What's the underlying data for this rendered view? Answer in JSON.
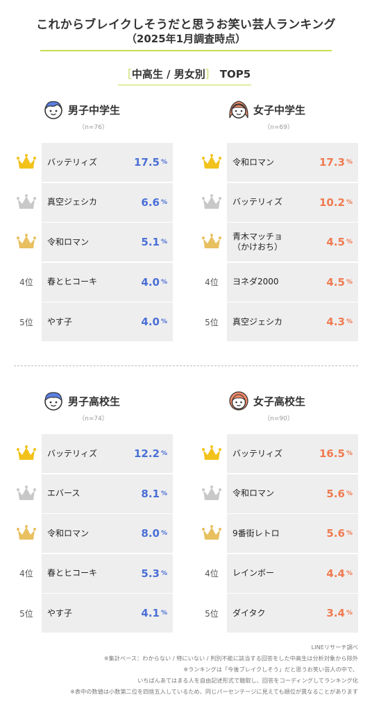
{
  "title_line1": "これからブレイクしそうだと思うお笑い芸人ランキング",
  "title_line2": "（2025年1月調査時点）",
  "subtitle": {
    "open": "［",
    "text": "中高生 / 男女別",
    "close": "］",
    "top": "TOP5"
  },
  "colors": {
    "accent": "#c5de4e",
    "male": "#4a6fd6",
    "female": "#f07a50",
    "gold": "#f2c21a",
    "silver": "#c8c8c8",
    "bronze": "#e8c060"
  },
  "chart_data": [
    {
      "type": "table",
      "title": "男子中学生",
      "n": "（n=76）",
      "color": "male",
      "rows": [
        {
          "rank": 1,
          "rank_label": "1",
          "name": "バッテリィズ",
          "value": 17.5,
          "display": "17.5"
        },
        {
          "rank": 2,
          "rank_label": "2",
          "name": "真空ジェシカ",
          "value": 6.6,
          "display": "6.6"
        },
        {
          "rank": 3,
          "rank_label": "3",
          "name": "令和ロマン",
          "value": 5.1,
          "display": "5.1"
        },
        {
          "rank": 4,
          "rank_label": "4位",
          "name": "春とヒコーキ",
          "value": 4.0,
          "display": "4.0"
        },
        {
          "rank": 5,
          "rank_label": "5位",
          "name": "やす子",
          "value": 4.0,
          "display": "4.0"
        }
      ]
    },
    {
      "type": "table",
      "title": "女子中学生",
      "n": "（n=69）",
      "color": "female",
      "rows": [
        {
          "rank": 1,
          "rank_label": "1",
          "name": "令和ロマン",
          "value": 17.3,
          "display": "17.3"
        },
        {
          "rank": 2,
          "rank_label": "2",
          "name": "バッテリィズ",
          "value": 10.2,
          "display": "10.2"
        },
        {
          "rank": 3,
          "rank_label": "3",
          "name": "青木マッチョ\n（かけおち）",
          "value": 4.5,
          "display": "4.5"
        },
        {
          "rank": 4,
          "rank_label": "4位",
          "name": "ヨネダ2000",
          "value": 4.5,
          "display": "4.5"
        },
        {
          "rank": 5,
          "rank_label": "5位",
          "name": "真空ジェシカ",
          "value": 4.3,
          "display": "4.3"
        }
      ]
    },
    {
      "type": "table",
      "title": "男子高校生",
      "n": "（n=74）",
      "color": "male",
      "rows": [
        {
          "rank": 1,
          "rank_label": "1",
          "name": "バッテリィズ",
          "value": 12.2,
          "display": "12.2"
        },
        {
          "rank": 2,
          "rank_label": "2",
          "name": "エバース",
          "value": 8.1,
          "display": "8.1"
        },
        {
          "rank": 3,
          "rank_label": "3",
          "name": "令和ロマン",
          "value": 8.0,
          "display": "8.0"
        },
        {
          "rank": 4,
          "rank_label": "4位",
          "name": "春とヒコーキ",
          "value": 5.3,
          "display": "5.3"
        },
        {
          "rank": 5,
          "rank_label": "5位",
          "name": "やす子",
          "value": 4.1,
          "display": "4.1"
        }
      ]
    },
    {
      "type": "table",
      "title": "女子高校生",
      "n": "（n=90）",
      "color": "female",
      "rows": [
        {
          "rank": 1,
          "rank_label": "1",
          "name": "バッテリィズ",
          "value": 16.5,
          "display": "16.5"
        },
        {
          "rank": 2,
          "rank_label": "2",
          "name": "令和ロマン",
          "value": 5.6,
          "display": "5.6"
        },
        {
          "rank": 3,
          "rank_label": "3",
          "name": "9番街レトロ",
          "value": 5.6,
          "display": "5.6"
        },
        {
          "rank": 4,
          "rank_label": "4位",
          "name": "レインボー",
          "value": 4.4,
          "display": "4.4"
        },
        {
          "rank": 5,
          "rank_label": "5位",
          "name": "ダイタク",
          "value": 3.4,
          "display": "3.4"
        }
      ]
    }
  ],
  "unit": "%",
  "notes": [
    "LINEリサーチ調べ",
    "※集計ベース：わからない / 特にいない / 判別不能に該当する回答をした中高生は分析対象から除外",
    "※ランキングは「今後ブレイクしそう」だと思うお笑い芸人の中で、",
    "いちばんあてはまる人を自由記述形式で聴取し、回答をコーディングしてランキング化",
    "※表中の数値は小数第二位を四捨五入しているため、同じパーセンテージに見えても順位が異なることがあります"
  ]
}
